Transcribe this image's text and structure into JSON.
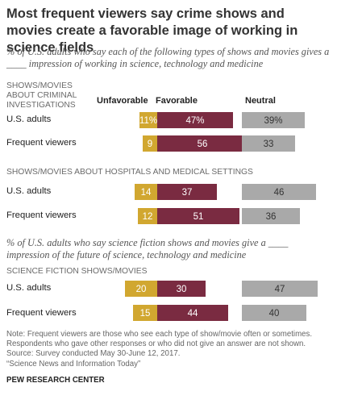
{
  "title": "Most frequent viewers say crime shows and movies create a favorable image of working in science fields",
  "subtitle_1": "% of U.S. adults who say each of the following types of shows and movies gives a ____ impression of working in science, technology and medicine",
  "subtitle_2": "% of U.S. adults who say science fiction shows and movies give a ____ impression of the future of science, technology and medicine",
  "column_headers": {
    "unfavorable": "Unfavorable",
    "favorable": "Favorable",
    "neutral": "Neutral"
  },
  "colors": {
    "unfavorable": "#D1A730",
    "favorable": "#7A2B41",
    "neutral": "#A9A9A9"
  },
  "footnote": [
    "Note: Frequent viewers are those who see each type of show/movie often or sometimes.",
    "Respondents who gave other responses or who did not give an answer are not shown.",
    "Source: Survey conducted May 30-June 12, 2017.",
    "“Science News and Information Today”"
  ],
  "source_org": "PEW RESEARCH CENTER",
  "chart_data": {
    "type": "bar",
    "subtype": "diverging stacked bar with separate neutral column",
    "series_names": [
      "Unfavorable",
      "Favorable",
      "Neutral"
    ],
    "groups": [
      {
        "name": "SHOWS/MOVIES ABOUT CRIMINAL INVESTIGATIONS",
        "rows": [
          {
            "label": "U.S. adults",
            "unfavorable": 11,
            "favorable": 47,
            "neutral": 39,
            "show_pct": true
          },
          {
            "label": "Frequent viewers",
            "unfavorable": 9,
            "favorable": 56,
            "neutral": 33
          }
        ]
      },
      {
        "name": "SHOWS/MOVIES ABOUT HOSPITALS AND MEDICAL SETTINGS",
        "rows": [
          {
            "label": "U.S. adults",
            "unfavorable": 14,
            "favorable": 37,
            "neutral": 46
          },
          {
            "label": "Frequent viewers",
            "unfavorable": 12,
            "favorable": 51,
            "neutral": 36
          }
        ]
      },
      {
        "name": "SCIENCE FICTION SHOWS/MOVIES",
        "rows": [
          {
            "label": "U.S. adults",
            "unfavorable": 20,
            "favorable": 30,
            "neutral": 47
          },
          {
            "label": "Frequent viewers",
            "unfavorable": 15,
            "favorable": 44,
            "neutral": 40
          }
        ]
      }
    ]
  }
}
